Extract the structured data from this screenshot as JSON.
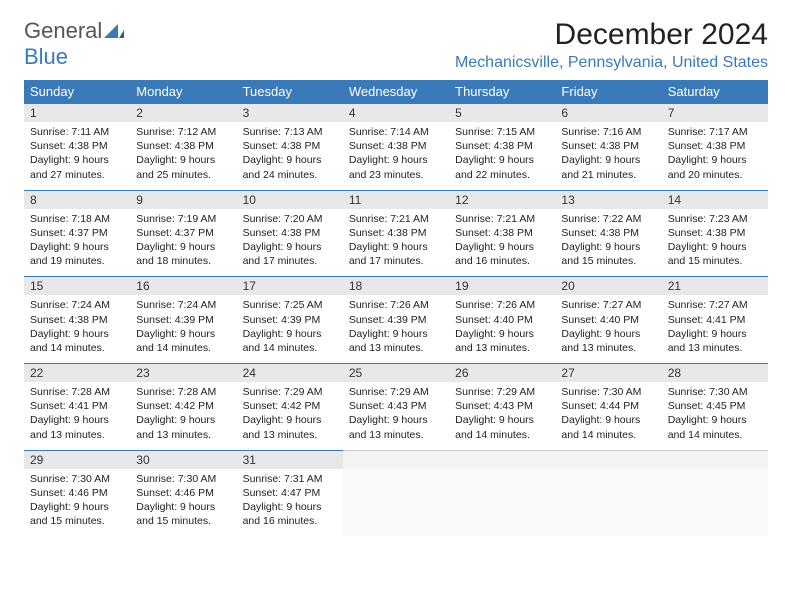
{
  "logo": {
    "part1": "General",
    "part2": "Blue"
  },
  "title": "December 2024",
  "location": "Mechanicsville, Pennsylvania, United States",
  "colors": {
    "accent": "#3a7ab8",
    "header_bg": "#3a7ab8",
    "daynum_bg": "#e8e8e8",
    "text": "#222222"
  },
  "weekdays": [
    "Sunday",
    "Monday",
    "Tuesday",
    "Wednesday",
    "Thursday",
    "Friday",
    "Saturday"
  ],
  "weeks": [
    [
      {
        "n": "1",
        "sr": "Sunrise: 7:11 AM",
        "ss": "Sunset: 4:38 PM",
        "d1": "Daylight: 9 hours",
        "d2": "and 27 minutes."
      },
      {
        "n": "2",
        "sr": "Sunrise: 7:12 AM",
        "ss": "Sunset: 4:38 PM",
        "d1": "Daylight: 9 hours",
        "d2": "and 25 minutes."
      },
      {
        "n": "3",
        "sr": "Sunrise: 7:13 AM",
        "ss": "Sunset: 4:38 PM",
        "d1": "Daylight: 9 hours",
        "d2": "and 24 minutes."
      },
      {
        "n": "4",
        "sr": "Sunrise: 7:14 AM",
        "ss": "Sunset: 4:38 PM",
        "d1": "Daylight: 9 hours",
        "d2": "and 23 minutes."
      },
      {
        "n": "5",
        "sr": "Sunrise: 7:15 AM",
        "ss": "Sunset: 4:38 PM",
        "d1": "Daylight: 9 hours",
        "d2": "and 22 minutes."
      },
      {
        "n": "6",
        "sr": "Sunrise: 7:16 AM",
        "ss": "Sunset: 4:38 PM",
        "d1": "Daylight: 9 hours",
        "d2": "and 21 minutes."
      },
      {
        "n": "7",
        "sr": "Sunrise: 7:17 AM",
        "ss": "Sunset: 4:38 PM",
        "d1": "Daylight: 9 hours",
        "d2": "and 20 minutes."
      }
    ],
    [
      {
        "n": "8",
        "sr": "Sunrise: 7:18 AM",
        "ss": "Sunset: 4:37 PM",
        "d1": "Daylight: 9 hours",
        "d2": "and 19 minutes."
      },
      {
        "n": "9",
        "sr": "Sunrise: 7:19 AM",
        "ss": "Sunset: 4:37 PM",
        "d1": "Daylight: 9 hours",
        "d2": "and 18 minutes."
      },
      {
        "n": "10",
        "sr": "Sunrise: 7:20 AM",
        "ss": "Sunset: 4:38 PM",
        "d1": "Daylight: 9 hours",
        "d2": "and 17 minutes."
      },
      {
        "n": "11",
        "sr": "Sunrise: 7:21 AM",
        "ss": "Sunset: 4:38 PM",
        "d1": "Daylight: 9 hours",
        "d2": "and 17 minutes."
      },
      {
        "n": "12",
        "sr": "Sunrise: 7:21 AM",
        "ss": "Sunset: 4:38 PM",
        "d1": "Daylight: 9 hours",
        "d2": "and 16 minutes."
      },
      {
        "n": "13",
        "sr": "Sunrise: 7:22 AM",
        "ss": "Sunset: 4:38 PM",
        "d1": "Daylight: 9 hours",
        "d2": "and 15 minutes."
      },
      {
        "n": "14",
        "sr": "Sunrise: 7:23 AM",
        "ss": "Sunset: 4:38 PM",
        "d1": "Daylight: 9 hours",
        "d2": "and 15 minutes."
      }
    ],
    [
      {
        "n": "15",
        "sr": "Sunrise: 7:24 AM",
        "ss": "Sunset: 4:38 PM",
        "d1": "Daylight: 9 hours",
        "d2": "and 14 minutes."
      },
      {
        "n": "16",
        "sr": "Sunrise: 7:24 AM",
        "ss": "Sunset: 4:39 PM",
        "d1": "Daylight: 9 hours",
        "d2": "and 14 minutes."
      },
      {
        "n": "17",
        "sr": "Sunrise: 7:25 AM",
        "ss": "Sunset: 4:39 PM",
        "d1": "Daylight: 9 hours",
        "d2": "and 14 minutes."
      },
      {
        "n": "18",
        "sr": "Sunrise: 7:26 AM",
        "ss": "Sunset: 4:39 PM",
        "d1": "Daylight: 9 hours",
        "d2": "and 13 minutes."
      },
      {
        "n": "19",
        "sr": "Sunrise: 7:26 AM",
        "ss": "Sunset: 4:40 PM",
        "d1": "Daylight: 9 hours",
        "d2": "and 13 minutes."
      },
      {
        "n": "20",
        "sr": "Sunrise: 7:27 AM",
        "ss": "Sunset: 4:40 PM",
        "d1": "Daylight: 9 hours",
        "d2": "and 13 minutes."
      },
      {
        "n": "21",
        "sr": "Sunrise: 7:27 AM",
        "ss": "Sunset: 4:41 PM",
        "d1": "Daylight: 9 hours",
        "d2": "and 13 minutes."
      }
    ],
    [
      {
        "n": "22",
        "sr": "Sunrise: 7:28 AM",
        "ss": "Sunset: 4:41 PM",
        "d1": "Daylight: 9 hours",
        "d2": "and 13 minutes."
      },
      {
        "n": "23",
        "sr": "Sunrise: 7:28 AM",
        "ss": "Sunset: 4:42 PM",
        "d1": "Daylight: 9 hours",
        "d2": "and 13 minutes."
      },
      {
        "n": "24",
        "sr": "Sunrise: 7:29 AM",
        "ss": "Sunset: 4:42 PM",
        "d1": "Daylight: 9 hours",
        "d2": "and 13 minutes."
      },
      {
        "n": "25",
        "sr": "Sunrise: 7:29 AM",
        "ss": "Sunset: 4:43 PM",
        "d1": "Daylight: 9 hours",
        "d2": "and 13 minutes."
      },
      {
        "n": "26",
        "sr": "Sunrise: 7:29 AM",
        "ss": "Sunset: 4:43 PM",
        "d1": "Daylight: 9 hours",
        "d2": "and 14 minutes."
      },
      {
        "n": "27",
        "sr": "Sunrise: 7:30 AM",
        "ss": "Sunset: 4:44 PM",
        "d1": "Daylight: 9 hours",
        "d2": "and 14 minutes."
      },
      {
        "n": "28",
        "sr": "Sunrise: 7:30 AM",
        "ss": "Sunset: 4:45 PM",
        "d1": "Daylight: 9 hours",
        "d2": "and 14 minutes."
      }
    ],
    [
      {
        "n": "29",
        "sr": "Sunrise: 7:30 AM",
        "ss": "Sunset: 4:46 PM",
        "d1": "Daylight: 9 hours",
        "d2": "and 15 minutes."
      },
      {
        "n": "30",
        "sr": "Sunrise: 7:30 AM",
        "ss": "Sunset: 4:46 PM",
        "d1": "Daylight: 9 hours",
        "d2": "and 15 minutes."
      },
      {
        "n": "31",
        "sr": "Sunrise: 7:31 AM",
        "ss": "Sunset: 4:47 PM",
        "d1": "Daylight: 9 hours",
        "d2": "and 16 minutes."
      },
      null,
      null,
      null,
      null
    ]
  ]
}
